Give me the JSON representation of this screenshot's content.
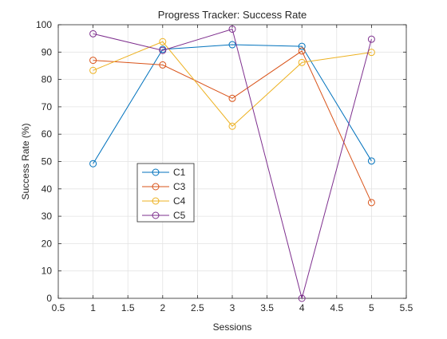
{
  "chart_data": {
    "type": "line",
    "title": "Progress Tracker: Success Rate",
    "xlabel": "Sessions",
    "ylabel": "Success Rate (%)",
    "xlim": [
      0.5,
      5.5
    ],
    "ylim": [
      0,
      100
    ],
    "xticks": [
      0.5,
      1,
      1.5,
      2,
      2.5,
      3,
      3.5,
      4,
      4.5,
      5,
      5.5
    ],
    "xtick_labels": [
      "0.5",
      "1",
      "1.5",
      "2",
      "2.5",
      "3",
      "3.5",
      "4",
      "4.5",
      "5",
      "5.5"
    ],
    "yticks": [
      0,
      10,
      20,
      30,
      40,
      50,
      60,
      70,
      80,
      90,
      100
    ],
    "ytick_labels": [
      "0",
      "10",
      "20",
      "30",
      "40",
      "50",
      "60",
      "70",
      "80",
      "90",
      "100"
    ],
    "grid": true,
    "legend_position": "center-left",
    "x": [
      1,
      2,
      3,
      4,
      5
    ],
    "series": [
      {
        "name": "C1",
        "color": "#0072BD",
        "values": [
          49.2,
          91.0,
          92.7,
          92.1,
          50.2
        ]
      },
      {
        "name": "C3",
        "color": "#D95319",
        "values": [
          87.0,
          85.3,
          73.1,
          90.4,
          35.0
        ]
      },
      {
        "name": "C4",
        "color": "#EDB120",
        "values": [
          83.3,
          93.8,
          62.9,
          86.2,
          89.9
        ]
      },
      {
        "name": "C5",
        "color": "#7E2F8E",
        "values": [
          96.7,
          90.6,
          98.4,
          0.0,
          94.7
        ]
      }
    ]
  }
}
